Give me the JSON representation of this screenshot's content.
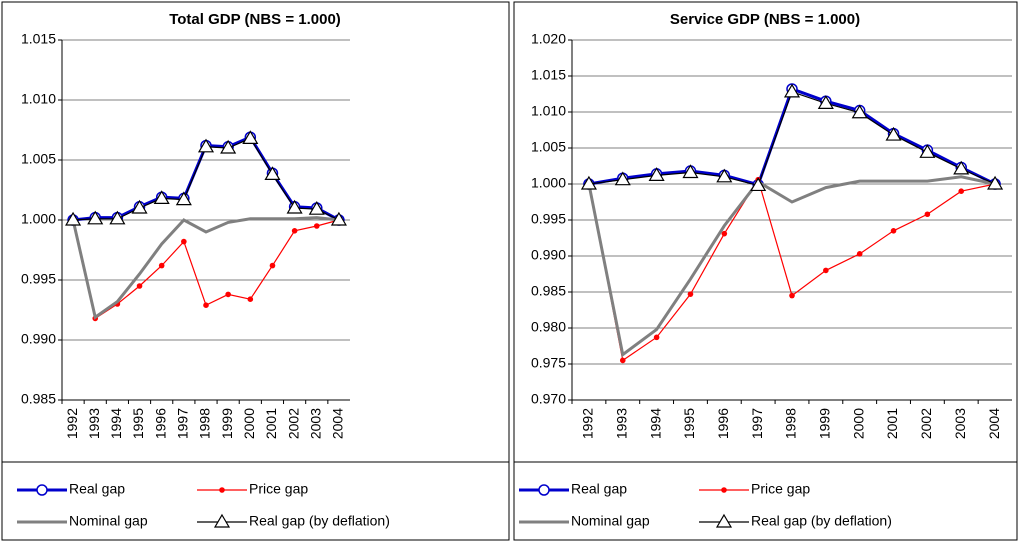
{
  "chart_data": [
    {
      "type": "line",
      "title": "Total GDP (NBS = 1.000)",
      "categories": [
        "1992",
        "1993",
        "1994",
        "1995",
        "1996",
        "1997",
        "1998",
        "1999",
        "2000",
        "2001",
        "2002",
        "2003",
        "2004"
      ],
      "ylim": [
        0.985,
        1.015
      ],
      "yticks": [
        0.985,
        {
          "value": 0.99,
          "label": "0.990"
        },
        0.995,
        {
          "value": 1,
          "label": "1.000"
        },
        1.005,
        {
          "value": 1.01,
          "label": "1.010"
        },
        1.015
      ],
      "grid": true,
      "series": [
        {
          "name": "Real gap",
          "color": "#0000cc",
          "marker": "circle",
          "values": [
            1.0,
            1.0002,
            1.0002,
            1.0011,
            1.0019,
            1.0018,
            1.0062,
            1.0061,
            1.0069,
            1.0039,
            1.0011,
            1.001,
            1.0
          ]
        },
        {
          "name": "Price gap",
          "color": "#ff0000",
          "marker": "dot",
          "values": [
            1.0,
            0.9918,
            0.993,
            0.9945,
            0.9962,
            0.9982,
            0.9929,
            0.9938,
            0.9934,
            0.9962,
            0.9991,
            0.9995,
            1.0
          ]
        },
        {
          "name": "Nominal gap",
          "color": "#808080",
          "marker": "none",
          "values": [
            1.0,
            0.9919,
            0.9932,
            0.9955,
            0.998,
            1.0,
            0.999,
            0.9998,
            1.0001,
            1.0001,
            1.0001,
            1.0002,
            1.0
          ]
        },
        {
          "name": "Real gap (by deflation)",
          "color": "#000000",
          "marker": "triangle",
          "values": [
            1.0,
            1.0001,
            1.0001,
            1.001,
            1.0018,
            1.0017,
            1.0061,
            1.006,
            1.0068,
            1.0038,
            1.001,
            1.0009,
            1.0
          ]
        }
      ]
    },
    {
      "type": "line",
      "title": "Service GDP (NBS = 1.000)",
      "categories": [
        "1992",
        "1993",
        "1994",
        "1995",
        "1996",
        "1997",
        "1998",
        "1999",
        "2000",
        "2001",
        "2002",
        "2003",
        "2004"
      ],
      "ylim": [
        0.97,
        1.02
      ],
      "yticks": [
        {
          "value": 0.97,
          "label": "0.970"
        },
        0.975,
        {
          "value": 0.98,
          "label": "0.980"
        },
        0.985,
        {
          "value": 0.99,
          "label": "0.990"
        },
        0.995,
        {
          "value": 1,
          "label": "1.000"
        },
        1.005,
        {
          "value": 1.01,
          "label": "1.010"
        },
        1.015,
        {
          "value": 1.02,
          "label": "1.020"
        }
      ],
      "grid": true,
      "series": [
        {
          "name": "Real gap",
          "color": "#0000cc",
          "marker": "circle",
          "values": [
            1.0,
            1.0008,
            1.0014,
            1.0018,
            1.0012,
            0.9999,
            1.0132,
            1.0115,
            1.0102,
            1.007,
            1.0047,
            1.0023,
            1.0
          ]
        },
        {
          "name": "Price gap",
          "color": "#ff0000",
          "marker": "dot",
          "values": [
            1.0,
            0.9755,
            0.9787,
            0.9847,
            0.9931,
            1.0006,
            0.9845,
            0.988,
            0.9903,
            0.9935,
            0.9958,
            0.999,
            1.0
          ]
        },
        {
          "name": "Nominal gap",
          "color": "#808080",
          "marker": "none",
          "values": [
            1.0,
            0.9763,
            0.9798,
            0.9868,
            0.9942,
            1.0003,
            0.9975,
            0.9995,
            1.0004,
            1.0004,
            1.0004,
            1.001,
            1.0
          ]
        },
        {
          "name": "Real gap (by deflation)",
          "color": "#000000",
          "marker": "triangle",
          "values": [
            1.0,
            1.0006,
            1.0012,
            1.0016,
            1.001,
            0.9998,
            1.0128,
            1.0112,
            1.0099,
            1.0068,
            1.0044,
            1.0021,
            1.0
          ]
        }
      ]
    }
  ]
}
